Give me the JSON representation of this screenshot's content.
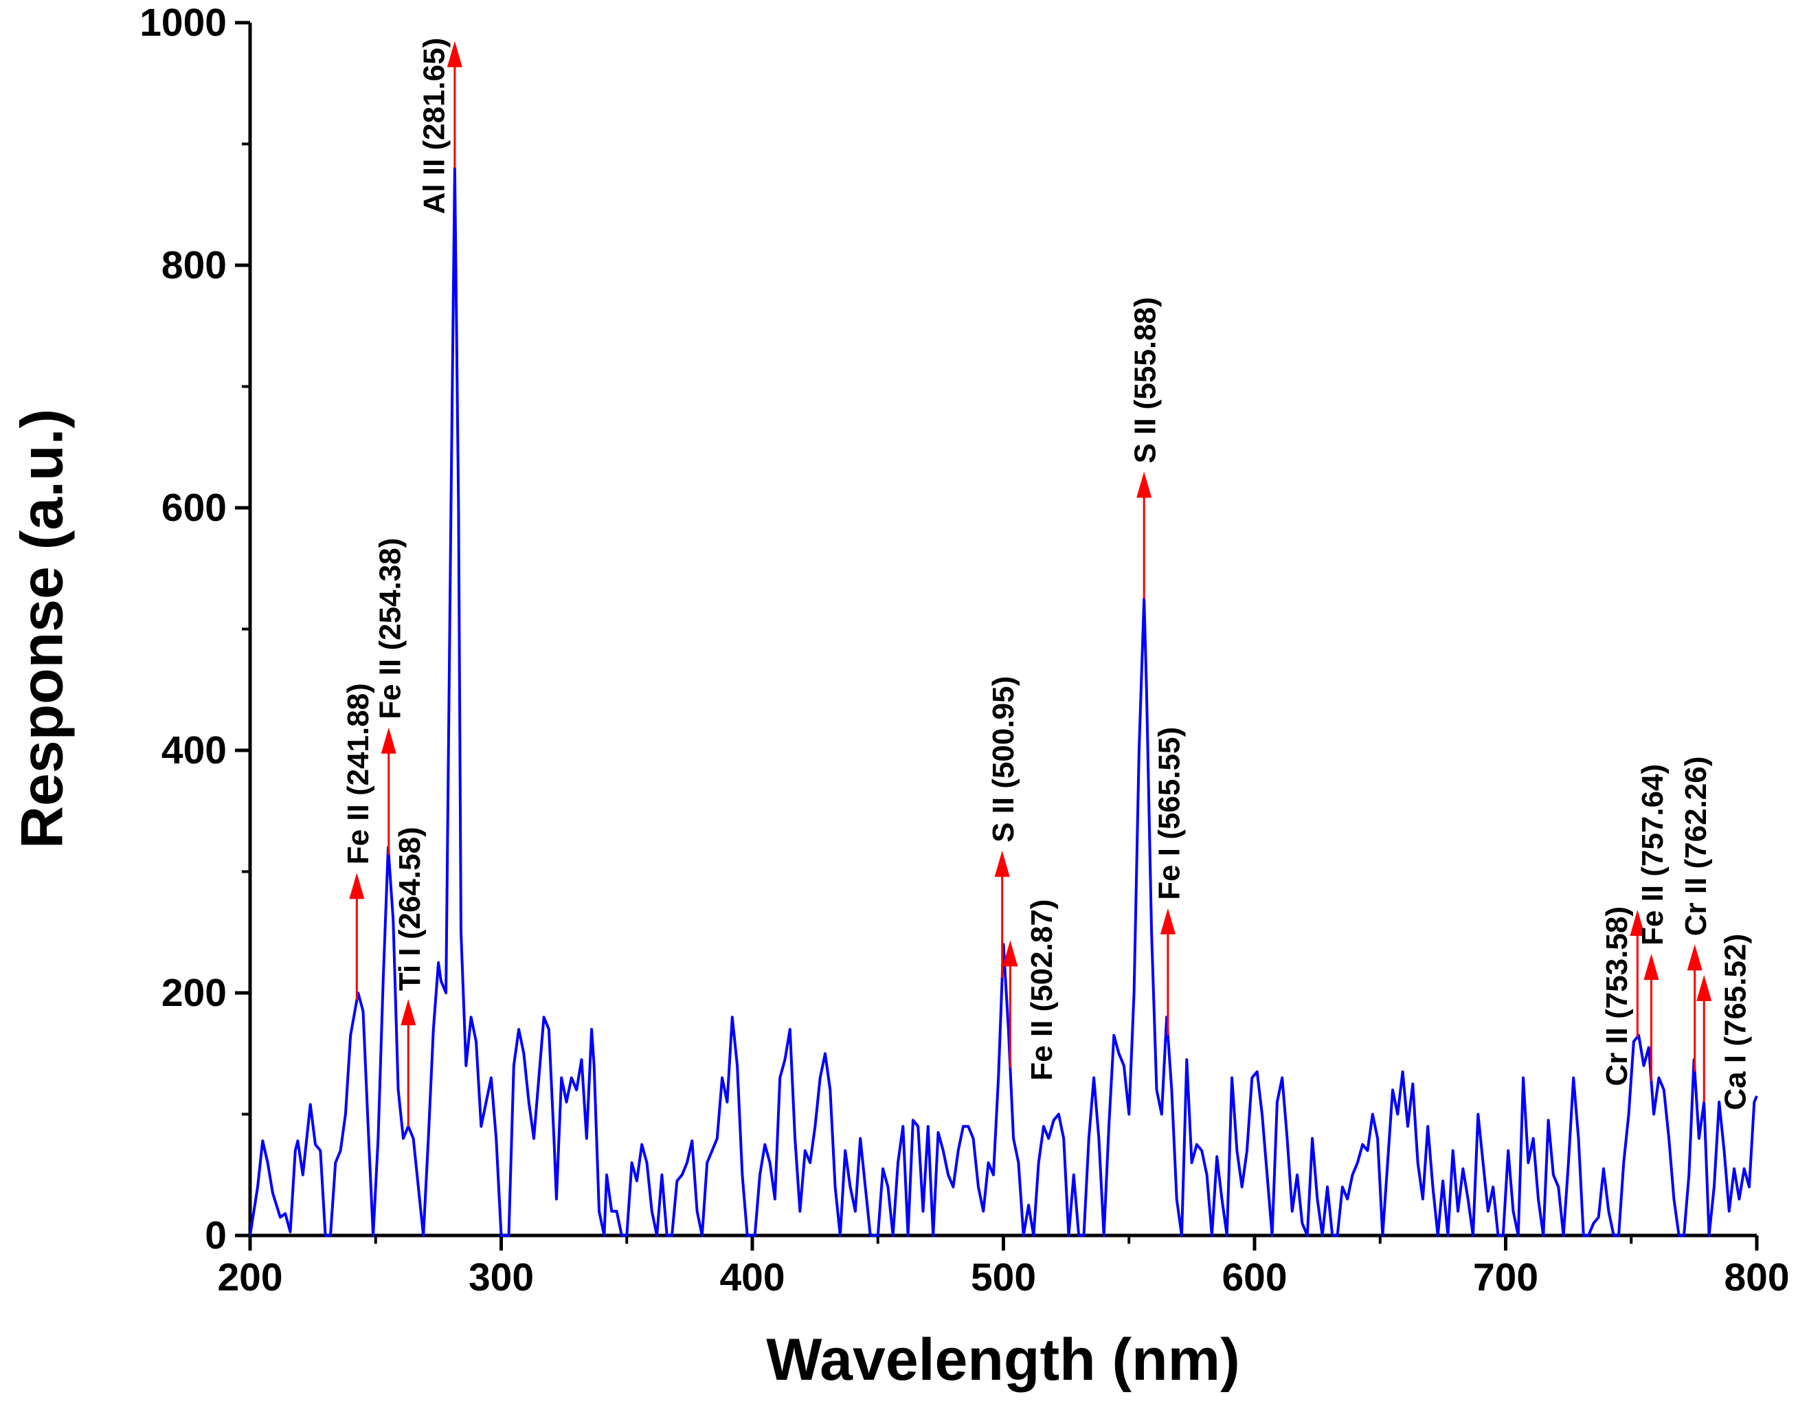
{
  "chart_data": {
    "type": "line",
    "xlabel": "Wavelength (nm)",
    "ylabel": "Response (a.u.)",
    "xlim": [
      200,
      800
    ],
    "ylim": [
      0,
      1000
    ],
    "xticks": [
      200,
      300,
      400,
      500,
      600,
      700,
      800
    ],
    "yticks": [
      0,
      200,
      400,
      600,
      800,
      1000
    ],
    "xminor": [
      250,
      350,
      450,
      550,
      650,
      750
    ],
    "yminor": [
      100,
      300,
      500,
      700,
      900
    ],
    "x": [
      200,
      203,
      205,
      207,
      209,
      212,
      214,
      216,
      218,
      219,
      221,
      224,
      226,
      228,
      230,
      232,
      234,
      236,
      238,
      240,
      243,
      245,
      247,
      249,
      251,
      253,
      255,
      257,
      259,
      261,
      263,
      265,
      267,
      269,
      271,
      273,
      275,
      276,
      278,
      280,
      281.5,
      283,
      284,
      286,
      288,
      290,
      292,
      294,
      296,
      298,
      300,
      303,
      305,
      307,
      309,
      311,
      313,
      315,
      317,
      319,
      321,
      322,
      324,
      326,
      328,
      330,
      332,
      334,
      336,
      337,
      339,
      341,
      342,
      344,
      346,
      348,
      350,
      352,
      354,
      356,
      358,
      360,
      362,
      364,
      366,
      368,
      370,
      372,
      374,
      376,
      378,
      380,
      382,
      384,
      386,
      388,
      390,
      392,
      394,
      396,
      398,
      401,
      403,
      405,
      407,
      409,
      411,
      413,
      415,
      417,
      419,
      421,
      423,
      425,
      427,
      429,
      431,
      433,
      435,
      437,
      439,
      441,
      443,
      445,
      447,
      450,
      452,
      454,
      456,
      458,
      460,
      462,
      464,
      466,
      468,
      470,
      472,
      474,
      476,
      478,
      480,
      482,
      484,
      486,
      488,
      490,
      492,
      494,
      496,
      498,
      500,
      502,
      504,
      506,
      508,
      510,
      512,
      514,
      516,
      518,
      520,
      522,
      524,
      526,
      528,
      530,
      532,
      534,
      536,
      538,
      540,
      542,
      544,
      546,
      548,
      550,
      552,
      554,
      556,
      557,
      559,
      561,
      563,
      565,
      567,
      569,
      571,
      573,
      575,
      577,
      579,
      581,
      583,
      585,
      587,
      589,
      591,
      593,
      595,
      597,
      599,
      601,
      603,
      605,
      607,
      609,
      611,
      613,
      615,
      617,
      619,
      621,
      623,
      625,
      627,
      629,
      631,
      633,
      635,
      637,
      639,
      641,
      643,
      645,
      647,
      649,
      651,
      653,
      655,
      657,
      659,
      661,
      663,
      665,
      667,
      669,
      671,
      673,
      675,
      677,
      679,
      681,
      683,
      685,
      687,
      689,
      691,
      693,
      695,
      697,
      699,
      701,
      703,
      705,
      707,
      709,
      711,
      713,
      715,
      717,
      719,
      721,
      723,
      725,
      727,
      729,
      731,
      733,
      735,
      737,
      739,
      741,
      743,
      745,
      747,
      749,
      751,
      753,
      755,
      757,
      759,
      761,
      763,
      765,
      767,
      769,
      771,
      773,
      775,
      777,
      779,
      781,
      783,
      785,
      787,
      789,
      791,
      793,
      795,
      797,
      799,
      800
    ],
    "series": [
      {
        "color": "#0000ff",
        "values": [
          0,
          40,
          78,
          60,
          35,
          15,
          18,
          3,
          70,
          78,
          50,
          108,
          75,
          70,
          0,
          0,
          60,
          70,
          100,
          165,
          200,
          185,
          90,
          0,
          80,
          210,
          320,
          260,
          120,
          80,
          90,
          80,
          40,
          0,
          80,
          170,
          225,
          210,
          200,
          600,
          880,
          600,
          250,
          140,
          180,
          160,
          90,
          110,
          130,
          80,
          0,
          0,
          140,
          170,
          150,
          110,
          80,
          130,
          180,
          170,
          80,
          30,
          130,
          110,
          130,
          120,
          145,
          80,
          170,
          140,
          20,
          0,
          50,
          20,
          20,
          0,
          0,
          60,
          45,
          75,
          60,
          20,
          0,
          50,
          0,
          0,
          45,
          50,
          60,
          78,
          20,
          0,
          60,
          70,
          80,
          130,
          110,
          180,
          140,
          50,
          0,
          0,
          50,
          75,
          60,
          30,
          130,
          145,
          170,
          80,
          20,
          70,
          60,
          90,
          130,
          150,
          120,
          40,
          0,
          70,
          40,
          20,
          80,
          40,
          0,
          0,
          55,
          40,
          0,
          60,
          90,
          0,
          95,
          90,
          20,
          90,
          0,
          85,
          70,
          50,
          40,
          70,
          90,
          90,
          80,
          40,
          20,
          60,
          50,
          130,
          240,
          170,
          80,
          60,
          0,
          25,
          0,
          60,
          90,
          80,
          95,
          100,
          80,
          0,
          50,
          0,
          0,
          80,
          130,
          80,
          0,
          90,
          165,
          150,
          140,
          100,
          200,
          400,
          525,
          450,
          250,
          120,
          100,
          180,
          120,
          30,
          0,
          145,
          60,
          75,
          70,
          50,
          0,
          65,
          30,
          0,
          130,
          70,
          40,
          70,
          130,
          135,
          100,
          50,
          0,
          110,
          130,
          80,
          20,
          50,
          10,
          0,
          80,
          30,
          0,
          40,
          0,
          0,
          40,
          30,
          50,
          60,
          75,
          70,
          100,
          80,
          0,
          60,
          120,
          100,
          135,
          90,
          125,
          60,
          30,
          90,
          40,
          0,
          45,
          0,
          70,
          20,
          55,
          30,
          0,
          100,
          60,
          20,
          40,
          0,
          0,
          70,
          20,
          0,
          130,
          60,
          80,
          30,
          0,
          95,
          50,
          40,
          0,
          60,
          130,
          80,
          0,
          0,
          10,
          15,
          55,
          20,
          0,
          0,
          60,
          100,
          160,
          165,
          140,
          155,
          100,
          130,
          120,
          80,
          30,
          0,
          0,
          50,
          145,
          80,
          110,
          0,
          40,
          110,
          70,
          20,
          55,
          30,
          55,
          40,
          110,
          115
        ]
      }
    ],
    "annotation_color": "#ff0000",
    "annotations": [
      {
        "text": "Fe II (241.88)",
        "x": 242.5,
        "side": "above"
      },
      {
        "text": "Fe II (254.38)",
        "x": 255.2,
        "side": "above"
      },
      {
        "text": "Ti I (264.58)",
        "x": 263,
        "side": "above"
      },
      {
        "text": "Al II (281.65)",
        "x": 281.5,
        "side": "left"
      },
      {
        "text": "S II (500.95)",
        "x": 499.5,
        "side": "above"
      },
      {
        "text": "Fe II (502.87)",
        "x": 502.7,
        "side": "right"
      },
      {
        "text": "S II (555.88)",
        "x": 556,
        "side": "above"
      },
      {
        "text": "Fe I (565.55)",
        "x": 565.5,
        "side": "above"
      },
      {
        "text": "Cr II (753.58)",
        "x": 752.5,
        "side": "left"
      },
      {
        "text": "Fe II (757.64)",
        "x": 758,
        "side": "above"
      },
      {
        "text": "Cr II (762.26)",
        "x": 775.3,
        "side": "above"
      },
      {
        "text": "Ca I (765.52)",
        "x": 779,
        "side": "right"
      }
    ]
  }
}
